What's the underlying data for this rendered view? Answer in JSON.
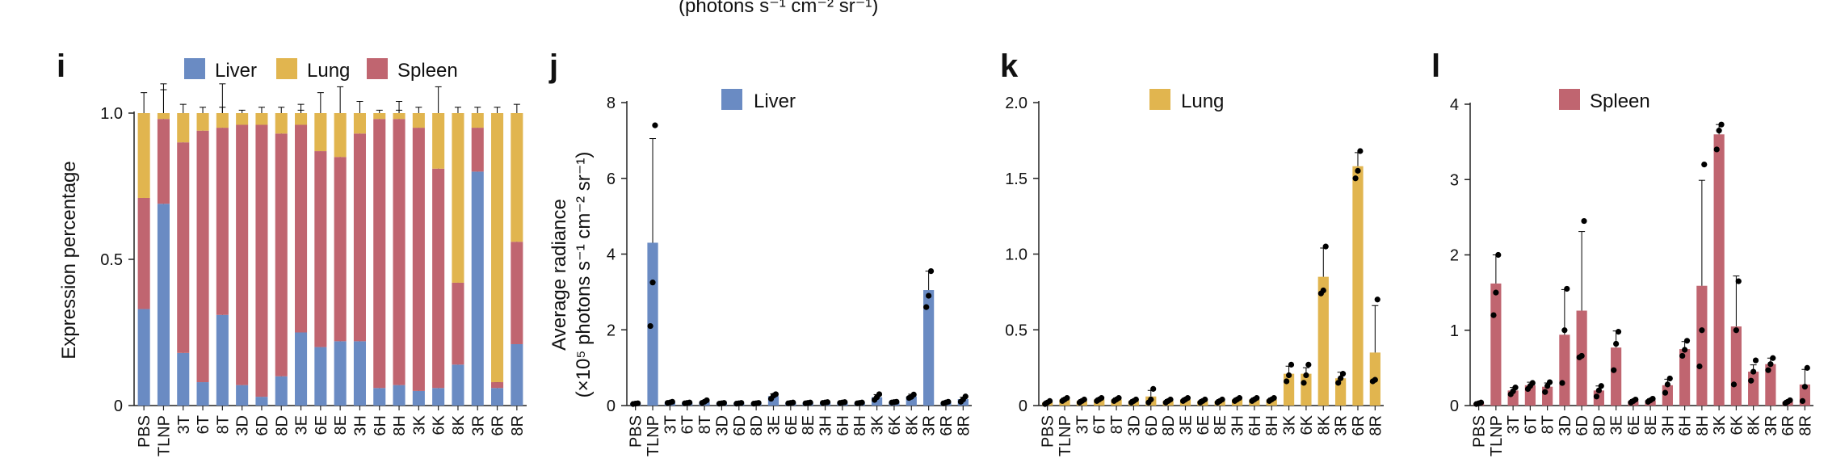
{
  "header_fragment": "(photons s⁻¹ cm⁻² sr⁻¹)",
  "colors": {
    "liver": "#6a8bc3",
    "lung": "#e1b54f",
    "spleen": "#c06570",
    "axis": "#222222",
    "dot": "#000000"
  },
  "categories": [
    "PBS",
    "TLNP",
    "3T",
    "6T",
    "8T",
    "3D",
    "6D",
    "8D",
    "3E",
    "6E",
    "8E",
    "3H",
    "6H",
    "8H",
    "3K",
    "6K",
    "8K",
    "3R",
    "6R",
    "8R"
  ],
  "chart_data": [
    {
      "panel": "i",
      "type": "bar",
      "stacked": true,
      "ylabel": "Expression percentage",
      "ylim": [
        0,
        1.0
      ],
      "yticks": [
        0,
        0.5,
        1.0
      ],
      "ytick_labels": [
        "0",
        "0.5",
        "1.0"
      ],
      "legend": [
        "Liver",
        "Lung",
        "Spleen"
      ],
      "legend_position": "top",
      "categories": [
        "PBS",
        "TLNP",
        "3T",
        "6T",
        "8T",
        "3D",
        "6D",
        "8D",
        "3E",
        "6E",
        "8E",
        "3H",
        "6H",
        "8H",
        "3K",
        "6K",
        "8K",
        "3R",
        "6R",
        "8R"
      ],
      "series": [
        {
          "name": "Liver",
          "color": "#6a8bc3",
          "values": [
            0.33,
            0.69,
            0.18,
            0.08,
            0.31,
            0.07,
            0.03,
            0.1,
            0.25,
            0.2,
            0.22,
            0.22,
            0.06,
            0.07,
            0.05,
            0.06,
            0.14,
            0.8,
            0.06,
            0.21
          ],
          "err": [
            0.07,
            0.11,
            0.03,
            0.01,
            0.06,
            0.01,
            0.01,
            0.05,
            0.04,
            0.05,
            0.12,
            0.05,
            0.02,
            0.02,
            0.02,
            0.02,
            0.06,
            0.02,
            0.02,
            0.14
          ]
        },
        {
          "name": "Spleen",
          "color": "#c06570",
          "values": [
            0.38,
            0.29,
            0.72,
            0.86,
            0.64,
            0.89,
            0.93,
            0.83,
            0.71,
            0.67,
            0.63,
            0.71,
            0.92,
            0.91,
            0.9,
            0.75,
            0.28,
            0.15,
            0.02,
            0.35
          ],
          "err": [
            0.08,
            0.1,
            0.03,
            0.02,
            0.15,
            0.01,
            0.01,
            0.04,
            0.05,
            0.07,
            0.1,
            0.05,
            0.01,
            0.03,
            0.03,
            0.05,
            0.05,
            0.01,
            0.01,
            0.16
          ]
        },
        {
          "name": "Lung",
          "color": "#e1b54f",
          "values": [
            0.29,
            0.02,
            0.1,
            0.06,
            0.05,
            0.04,
            0.04,
            0.07,
            0.04,
            0.13,
            0.15,
            0.07,
            0.02,
            0.02,
            0.05,
            0.19,
            0.58,
            0.05,
            0.92,
            0.44
          ],
          "err": [
            0.07,
            0.1,
            0.03,
            0.02,
            0.02,
            0.01,
            0.02,
            0.02,
            0.03,
            0.07,
            0.09,
            0.04,
            0.01,
            0.04,
            0.02,
            0.09,
            0.02,
            0.02,
            0.02,
            0.03
          ]
        }
      ]
    },
    {
      "panel": "j",
      "type": "bar",
      "ylabel": "Average radiance",
      "ylabel2": "(×10⁵ photons s⁻¹ cm⁻² sr⁻¹)",
      "ylim": [
        0,
        8
      ],
      "yticks": [
        0,
        2,
        4,
        6,
        8
      ],
      "ytick_labels": [
        "0",
        "2",
        "4",
        "6",
        "8"
      ],
      "legend": [
        "Liver"
      ],
      "color": "#6a8bc3",
      "categories": [
        "PBS",
        "TLNP",
        "3T",
        "6T",
        "8T",
        "3D",
        "6D",
        "8D",
        "3E",
        "6E",
        "8E",
        "3H",
        "6H",
        "8H",
        "3K",
        "6K",
        "8K",
        "3R",
        "6R",
        "8R"
      ],
      "values": [
        0.05,
        4.3,
        0.08,
        0.07,
        0.1,
        0.06,
        0.06,
        0.06,
        0.25,
        0.07,
        0.07,
        0.08,
        0.08,
        0.07,
        0.22,
        0.09,
        0.24,
        3.05,
        0.08,
        0.17
      ],
      "err": [
        0.02,
        2.75,
        0.02,
        0.02,
        0.03,
        0.02,
        0.02,
        0.02,
        0.06,
        0.02,
        0.02,
        0.02,
        0.02,
        0.02,
        0.07,
        0.02,
        0.06,
        0.5,
        0.02,
        0.05
      ],
      "points": [
        [
          0.04,
          0.05,
          0.06
        ],
        [
          2.1,
          3.25,
          7.4
        ],
        [
          0.07,
          0.08,
          0.1
        ],
        [
          0.06,
          0.07,
          0.08
        ],
        [
          0.07,
          0.1,
          0.14
        ],
        [
          0.05,
          0.06,
          0.07
        ],
        [
          0.05,
          0.06,
          0.07
        ],
        [
          0.05,
          0.06,
          0.07
        ],
        [
          0.18,
          0.26,
          0.3
        ],
        [
          0.06,
          0.07,
          0.08
        ],
        [
          0.06,
          0.07,
          0.08
        ],
        [
          0.07,
          0.08,
          0.09
        ],
        [
          0.07,
          0.08,
          0.09
        ],
        [
          0.06,
          0.07,
          0.08
        ],
        [
          0.15,
          0.22,
          0.3
        ],
        [
          0.08,
          0.09,
          0.1
        ],
        [
          0.2,
          0.23,
          0.29
        ],
        [
          2.6,
          2.9,
          3.55
        ],
        [
          0.06,
          0.08,
          0.1
        ],
        [
          0.1,
          0.16,
          0.24
        ]
      ]
    },
    {
      "panel": "k",
      "type": "bar",
      "ylim": [
        0,
        2.0
      ],
      "yticks": [
        0,
        0.5,
        1.0,
        1.5,
        2.0
      ],
      "ytick_labels": [
        "0",
        "0.5",
        "1.0",
        "1.5",
        "2.0"
      ],
      "legend": [
        "Lung"
      ],
      "color": "#e1b54f",
      "categories": [
        "PBS",
        "TLNP",
        "3T",
        "6T",
        "8T",
        "3D",
        "6D",
        "8D",
        "3E",
        "6E",
        "8E",
        "3H",
        "6H",
        "8H",
        "3K",
        "6K",
        "8K",
        "3R",
        "6R",
        "8R"
      ],
      "values": [
        0.02,
        0.04,
        0.03,
        0.04,
        0.04,
        0.03,
        0.06,
        0.03,
        0.04,
        0.03,
        0.03,
        0.04,
        0.04,
        0.04,
        0.21,
        0.21,
        0.85,
        0.18,
        1.58,
        0.35
      ],
      "err": [
        0.01,
        0.01,
        0.01,
        0.01,
        0.01,
        0.01,
        0.04,
        0.01,
        0.01,
        0.01,
        0.01,
        0.01,
        0.01,
        0.01,
        0.05,
        0.04,
        0.19,
        0.04,
        0.09,
        0.31
      ],
      "points": [
        [
          0.01,
          0.02,
          0.03
        ],
        [
          0.03,
          0.04,
          0.05
        ],
        [
          0.02,
          0.03,
          0.04
        ],
        [
          0.03,
          0.04,
          0.05
        ],
        [
          0.03,
          0.04,
          0.05
        ],
        [
          0.02,
          0.03,
          0.04
        ],
        [
          0.02,
          0.04,
          0.11
        ],
        [
          0.02,
          0.03,
          0.04
        ],
        [
          0.03,
          0.04,
          0.05
        ],
        [
          0.02,
          0.03,
          0.04
        ],
        [
          0.02,
          0.03,
          0.04
        ],
        [
          0.03,
          0.04,
          0.05
        ],
        [
          0.03,
          0.04,
          0.05
        ],
        [
          0.03,
          0.04,
          0.05
        ],
        [
          0.16,
          0.2,
          0.27
        ],
        [
          0.15,
          0.2,
          0.27
        ],
        [
          0.74,
          0.76,
          1.05
        ],
        [
          0.15,
          0.18,
          0.21
        ],
        [
          1.5,
          1.55,
          1.68
        ],
        [
          0.16,
          0.17,
          0.7
        ]
      ]
    },
    {
      "panel": "l",
      "type": "bar",
      "ylim": [
        0,
        4
      ],
      "yticks": [
        0,
        1,
        2,
        3,
        4
      ],
      "ytick_labels": [
        "0",
        "1",
        "2",
        "3",
        "4"
      ],
      "legend": [
        "Spleen"
      ],
      "color": "#c06570",
      "categories": [
        "PBS",
        "TLNP",
        "3T",
        "6T",
        "8T",
        "3D",
        "6D",
        "8D",
        "3E",
        "6E",
        "8E",
        "3H",
        "6H",
        "8H",
        "3K",
        "6K",
        "8K",
        "3R",
        "6R",
        "8R"
      ],
      "values": [
        0.03,
        1.62,
        0.2,
        0.27,
        0.25,
        0.94,
        1.26,
        0.2,
        0.77,
        0.06,
        0.07,
        0.27,
        0.75,
        1.59,
        3.6,
        1.05,
        0.45,
        0.55,
        0.05,
        0.28
      ],
      "err": [
        0.01,
        0.38,
        0.04,
        0.04,
        0.05,
        0.6,
        1.05,
        0.06,
        0.22,
        0.02,
        0.02,
        0.08,
        0.1,
        1.4,
        0.13,
        0.67,
        0.09,
        0.08,
        0.02,
        0.2
      ],
      "points": [
        [
          0.02,
          0.03,
          0.04
        ],
        [
          1.2,
          1.5,
          2.0
        ],
        [
          0.15,
          0.19,
          0.24
        ],
        [
          0.22,
          0.26,
          0.3
        ],
        [
          0.18,
          0.26,
          0.31
        ],
        [
          0.3,
          1.0,
          1.55
        ],
        [
          0.64,
          0.66,
          2.45
        ],
        [
          0.12,
          0.2,
          0.26
        ],
        [
          0.47,
          0.82,
          0.98
        ],
        [
          0.04,
          0.06,
          0.08
        ],
        [
          0.05,
          0.07,
          0.09
        ],
        [
          0.17,
          0.28,
          0.36
        ],
        [
          0.66,
          0.74,
          0.86
        ],
        [
          0.52,
          1.0,
          3.2
        ],
        [
          3.4,
          3.65,
          3.73
        ],
        [
          0.28,
          1.0,
          1.65
        ],
        [
          0.33,
          0.45,
          0.6
        ],
        [
          0.47,
          0.55,
          0.63
        ],
        [
          0.03,
          0.05,
          0.07
        ],
        [
          0.06,
          0.25,
          0.5
        ]
      ]
    }
  ]
}
